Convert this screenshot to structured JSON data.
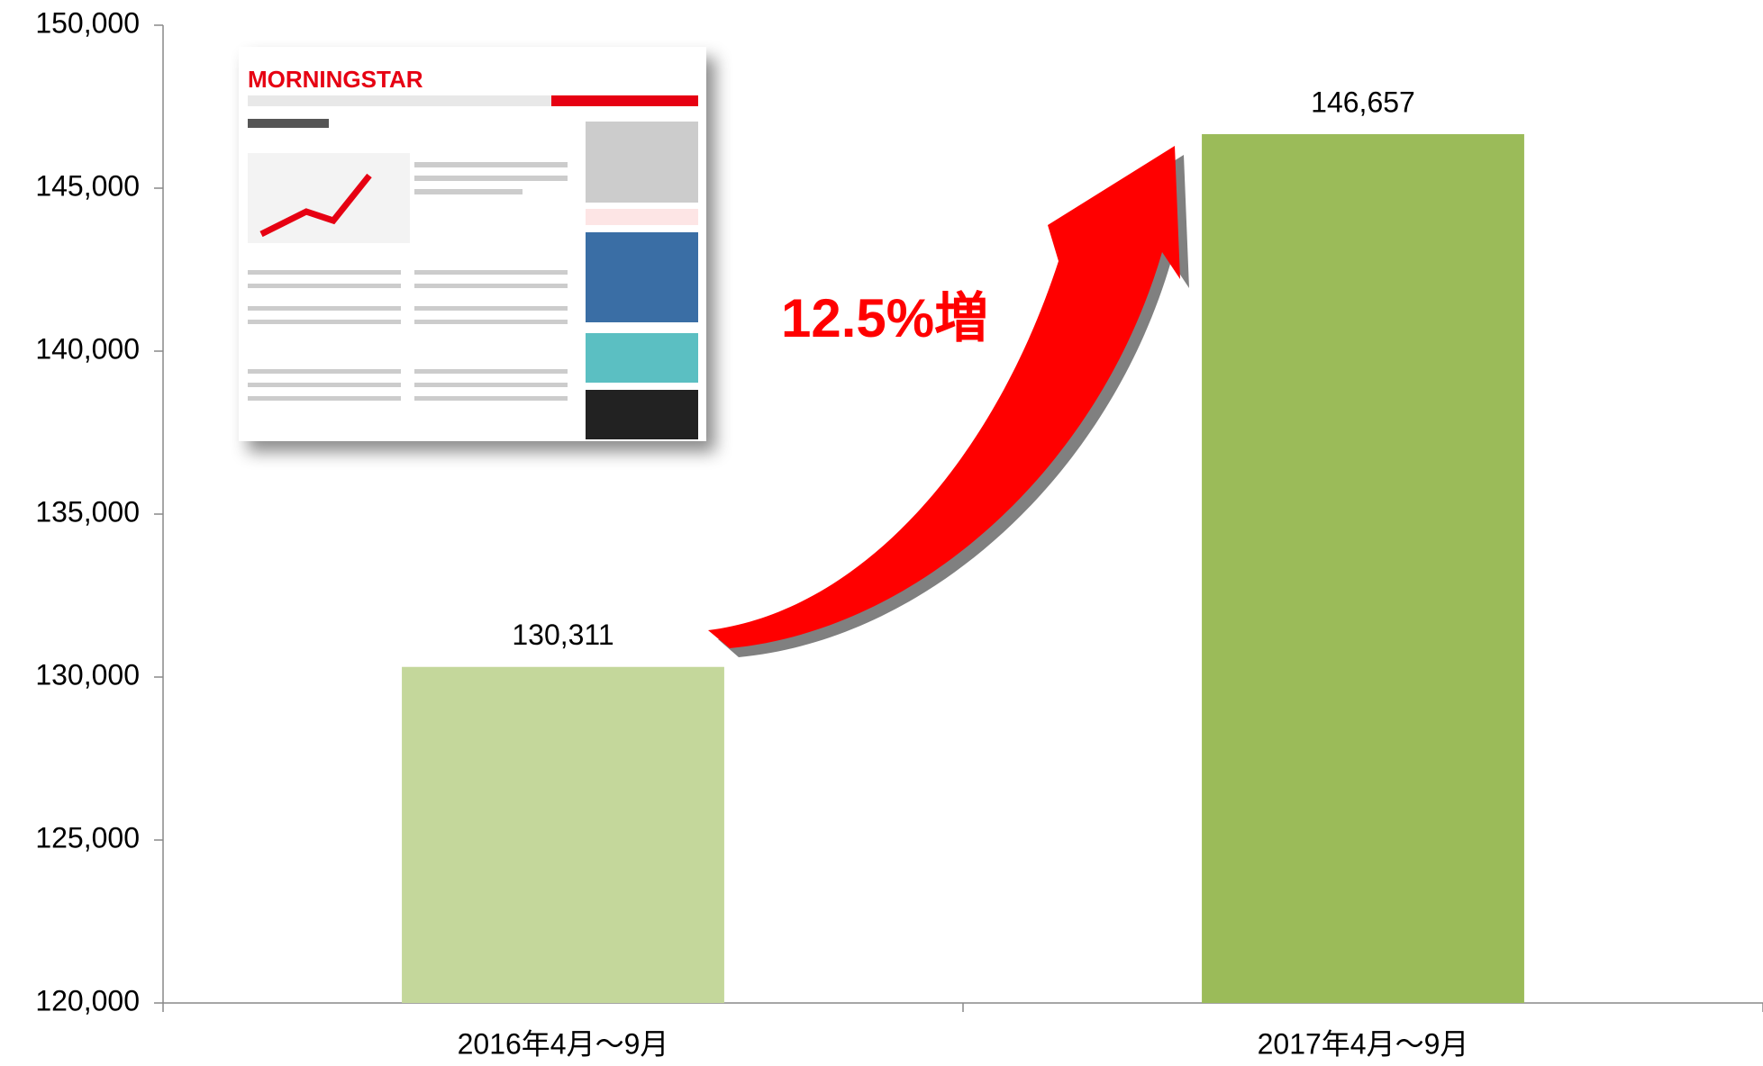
{
  "chart_data": {
    "type": "bar",
    "categories": [
      "2016年4月～9月",
      "2017年4月～9月"
    ],
    "values": [
      130311,
      146657
    ],
    "value_labels": [
      "130,311",
      "146,657"
    ],
    "colors": [
      "#c4d79b",
      "#9bbb59"
    ],
    "ylim": [
      120000,
      150000
    ],
    "yticks": [
      {
        "value": 120000,
        "label": "120,000"
      },
      {
        "value": 125000,
        "label": "125,000"
      },
      {
        "value": 130000,
        "label": "130,000"
      },
      {
        "value": 135000,
        "label": "135,000"
      },
      {
        "value": 140000,
        "label": "140,000"
      },
      {
        "value": 145000,
        "label": "145,000"
      },
      {
        "value": 150000,
        "label": "150,000"
      }
    ],
    "grid": false,
    "annotation": "12.5%増",
    "inset_logo": "MORNINGSTAR"
  }
}
